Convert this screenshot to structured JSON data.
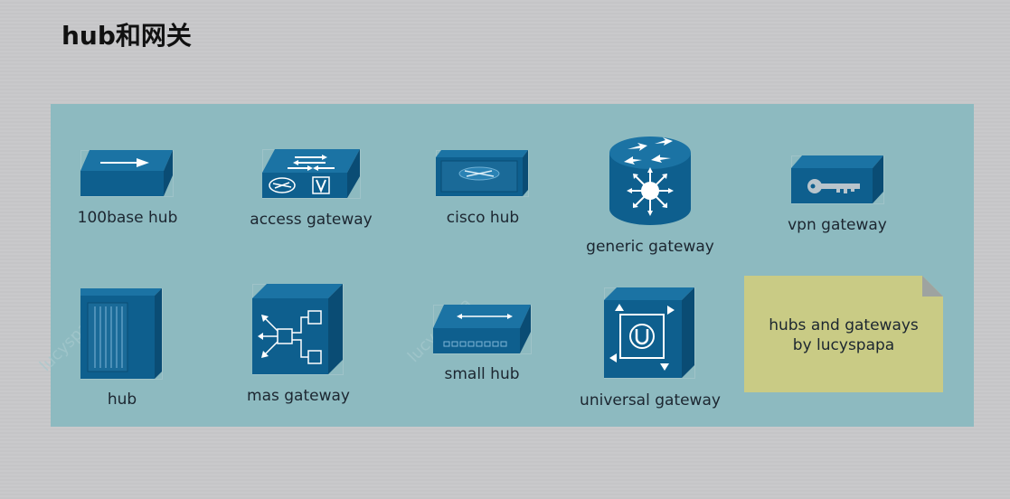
{
  "title": "hub和网关",
  "items": [
    {
      "key": "100base-hub",
      "label": "100base hub"
    },
    {
      "key": "access-gateway",
      "label": "access gateway"
    },
    {
      "key": "cisco-hub",
      "label": "cisco hub"
    },
    {
      "key": "generic-gateway",
      "label": "generic gateway"
    },
    {
      "key": "vpn-gateway",
      "label": "vpn gateway"
    },
    {
      "key": "hub",
      "label": "hub"
    },
    {
      "key": "mas-gateway",
      "label": "mas gateway"
    },
    {
      "key": "small-hub",
      "label": "small hub"
    },
    {
      "key": "universal-gateway",
      "label": "universal gateway"
    }
  ],
  "note": {
    "line1": "hubs and gateways",
    "line2": "by lucyspapa"
  },
  "watermark": "lucyspapa",
  "colors": {
    "icon_face": "#0e5f8e",
    "icon_side": "#0a4c74",
    "icon_top": "#1b73a4",
    "panel": "#8dbac0",
    "note": "#c9cb85"
  }
}
